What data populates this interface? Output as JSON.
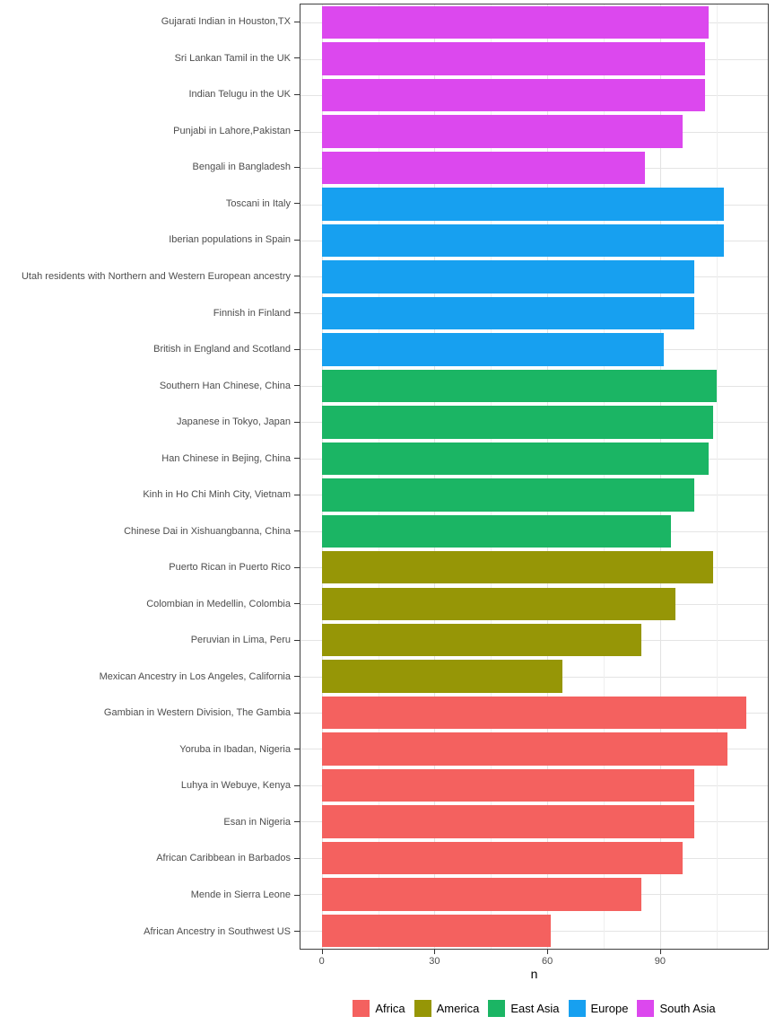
{
  "chart_data": {
    "type": "bar",
    "orientation": "horizontal",
    "title": "",
    "xlabel": "n",
    "ylabel": "",
    "xlim": [
      -5.65,
      118.65
    ],
    "x_ticks": [
      0,
      30,
      60,
      90
    ],
    "x_minor_ticks": [
      15,
      45,
      75,
      105
    ],
    "grid": "on",
    "legend": {
      "position": "bottom",
      "entries": [
        {
          "label": "Africa",
          "color": "#F4615F"
        },
        {
          "label": "America",
          "color": "#969606"
        },
        {
          "label": "East Asia",
          "color": "#1BB564"
        },
        {
          "label": "Europe",
          "color": "#17A0F0"
        },
        {
          "label": "South Asia",
          "color": "#DC48EE"
        }
      ]
    },
    "points": [
      {
        "label": "Gujarati Indian in Houston,TX",
        "group": "South Asia",
        "value": 103
      },
      {
        "label": "Sri Lankan Tamil in the UK",
        "group": "South Asia",
        "value": 102
      },
      {
        "label": "Indian Telugu in the UK",
        "group": "South Asia",
        "value": 102
      },
      {
        "label": "Punjabi in Lahore,Pakistan",
        "group": "South Asia",
        "value": 96
      },
      {
        "label": "Bengali in Bangladesh",
        "group": "South Asia",
        "value": 86
      },
      {
        "label": "Toscani in Italy",
        "group": "Europe",
        "value": 107
      },
      {
        "label": "Iberian populations in Spain",
        "group": "Europe",
        "value": 107
      },
      {
        "label": "Utah residents with Northern and Western European ancestry",
        "group": "Europe",
        "value": 99
      },
      {
        "label": "Finnish in Finland",
        "group": "Europe",
        "value": 99
      },
      {
        "label": "British in England and Scotland",
        "group": "Europe",
        "value": 91
      },
      {
        "label": "Southern Han Chinese, China",
        "group": "East Asia",
        "value": 105
      },
      {
        "label": "Japanese in Tokyo, Japan",
        "group": "East Asia",
        "value": 104
      },
      {
        "label": "Han Chinese in Bejing, China",
        "group": "East Asia",
        "value": 103
      },
      {
        "label": "Kinh in Ho Chi Minh City, Vietnam",
        "group": "East Asia",
        "value": 99
      },
      {
        "label": "Chinese Dai in Xishuangbanna, China",
        "group": "East Asia",
        "value": 93
      },
      {
        "label": "Puerto Rican in Puerto Rico",
        "group": "America",
        "value": 104
      },
      {
        "label": "Colombian in Medellin, Colombia",
        "group": "America",
        "value": 94
      },
      {
        "label": "Peruvian in Lima, Peru",
        "group": "America",
        "value": 85
      },
      {
        "label": "Mexican Ancestry in Los Angeles, California",
        "group": "America",
        "value": 64
      },
      {
        "label": "Gambian in Western Division, The Gambia",
        "group": "Africa",
        "value": 113
      },
      {
        "label": "Yoruba in Ibadan, Nigeria",
        "group": "Africa",
        "value": 108
      },
      {
        "label": "Luhya in Webuye, Kenya",
        "group": "Africa",
        "value": 99
      },
      {
        "label": "Esan in Nigeria",
        "group": "Africa",
        "value": 99
      },
      {
        "label": "African Caribbean in Barbados",
        "group": "Africa",
        "value": 96
      },
      {
        "label": "Mende in Sierra Leone",
        "group": "Africa",
        "value": 85
      },
      {
        "label": "African Ancestry in Southwest US",
        "group": "Africa",
        "value": 61
      }
    ]
  },
  "axis": {
    "x_title": "n"
  }
}
